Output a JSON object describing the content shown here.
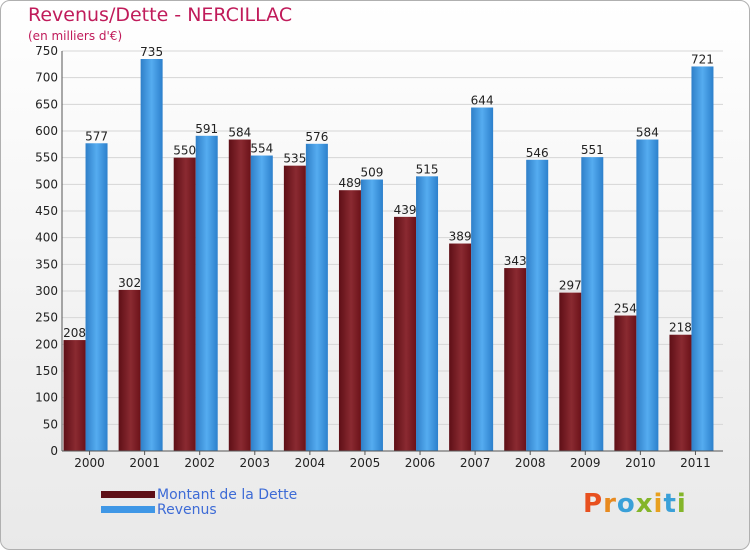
{
  "header": {
    "title": "Revenus/Dette - NERCILLAC",
    "subtitle": "(en milliers d'€)"
  },
  "logo": {
    "text": "Proxiti"
  },
  "colors": {
    "debt": "#7a1a22",
    "revenue": "#3f97e6",
    "title": "#c01b5a",
    "legend_text": "#3d6bd6"
  },
  "chart_data": {
    "type": "bar",
    "title": "Revenus/Dette - NERCILLAC",
    "subtitle": "(en milliers d'€)",
    "xlabel": "",
    "ylabel": "",
    "categories": [
      "2000",
      "2001",
      "2002",
      "2003",
      "2004",
      "2005",
      "2006",
      "2007",
      "2008",
      "2009",
      "2010",
      "2011"
    ],
    "series": [
      {
        "name": "Montant de la Dette",
        "values": [
          208,
          302,
          550,
          584,
          535,
          489,
          439,
          389,
          343,
          297,
          254,
          218
        ]
      },
      {
        "name": "Revenus",
        "values": [
          577,
          735,
          591,
          554,
          576,
          509,
          515,
          644,
          546,
          551,
          584,
          721
        ]
      }
    ],
    "ylim": [
      0,
      750
    ],
    "yticks": [
      0,
      50,
      100,
      150,
      200,
      250,
      300,
      350,
      400,
      450,
      500,
      550,
      600,
      650,
      700,
      750
    ],
    "grid": true,
    "legend": "bottom-left"
  }
}
